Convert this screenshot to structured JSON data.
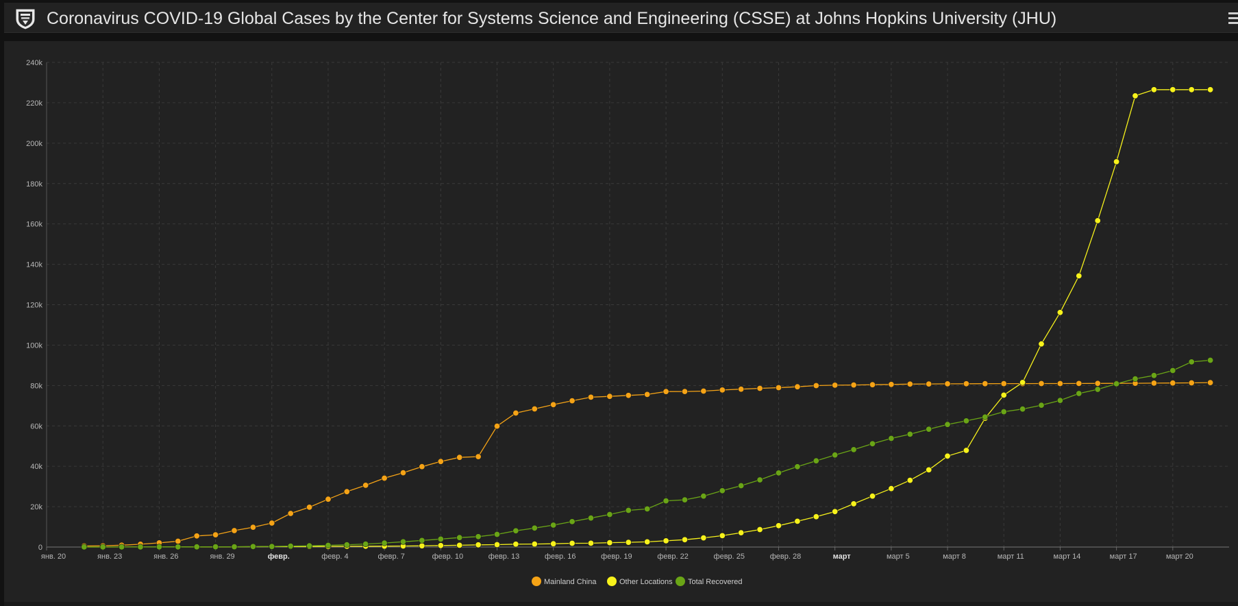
{
  "header": {
    "title": "Coronavirus COVID-19 Global Cases by the Center for Systems Science and Engineering (CSSE) at Johns Hopkins University (JHU)",
    "logo_icon": "university-shield-icon",
    "menu_icon": "menu-icon"
  },
  "colors": {
    "background": "#222222",
    "grid": "#3a3a3a",
    "axis_text": "#b8b8b8",
    "mainland_china": "#f5a316",
    "other_locations": "#f7f21b",
    "total_recovered": "#6aa516"
  },
  "chart_data": {
    "type": "line",
    "title": "",
    "xlabel": "",
    "ylabel": "",
    "x_start": "2020-01-22",
    "x_ticks": [
      {
        "label": "янв. 20",
        "date": "2020-01-20",
        "bold": false
      },
      {
        "label": "янв. 23",
        "date": "2020-01-23",
        "bold": false
      },
      {
        "label": "янв. 26",
        "date": "2020-01-26",
        "bold": false
      },
      {
        "label": "янв. 29",
        "date": "2020-01-29",
        "bold": false
      },
      {
        "label": "февр.",
        "date": "2020-02-01",
        "bold": true
      },
      {
        "label": "февр. 4",
        "date": "2020-02-04",
        "bold": false
      },
      {
        "label": "февр. 7",
        "date": "2020-02-07",
        "bold": false
      },
      {
        "label": "февр. 10",
        "date": "2020-02-10",
        "bold": false
      },
      {
        "label": "февр. 13",
        "date": "2020-02-13",
        "bold": false
      },
      {
        "label": "февр. 16",
        "date": "2020-02-16",
        "bold": false
      },
      {
        "label": "февр. 19",
        "date": "2020-02-19",
        "bold": false
      },
      {
        "label": "февр. 22",
        "date": "2020-02-22",
        "bold": false
      },
      {
        "label": "февр. 25",
        "date": "2020-02-25",
        "bold": false
      },
      {
        "label": "февр. 28",
        "date": "2020-02-28",
        "bold": false
      },
      {
        "label": "март",
        "date": "2020-03-02",
        "bold": true
      },
      {
        "label": "март 5",
        "date": "2020-03-05",
        "bold": false
      },
      {
        "label": "март 8",
        "date": "2020-03-08",
        "bold": false
      },
      {
        "label": "март 11",
        "date": "2020-03-11",
        "bold": false
      },
      {
        "label": "март 14",
        "date": "2020-03-14",
        "bold": false
      },
      {
        "label": "март 17",
        "date": "2020-03-17",
        "bold": false
      },
      {
        "label": "март 20",
        "date": "2020-03-20",
        "bold": false
      }
    ],
    "x_range": [
      "2020-01-20",
      "2020-03-23"
    ],
    "y_ticks": [
      {
        "label": "0",
        "value": 0
      },
      {
        "label": "20k",
        "value": 20000
      },
      {
        "label": "40k",
        "value": 40000
      },
      {
        "label": "60k",
        "value": 60000
      },
      {
        "label": "80k",
        "value": 80000
      },
      {
        "label": "100k",
        "value": 100000
      },
      {
        "label": "120k",
        "value": 120000
      },
      {
        "label": "140k",
        "value": 140000
      },
      {
        "label": "160k",
        "value": 160000
      },
      {
        "label": "180k",
        "value": 180000
      },
      {
        "label": "200k",
        "value": 200000
      },
      {
        "label": "220k",
        "value": 220000
      },
      {
        "label": "240k",
        "value": 240000
      }
    ],
    "ylim": [
      0,
      240000
    ],
    "grid": true,
    "legend_position": "bottom-center",
    "series": [
      {
        "name": "Mainland China",
        "color": "#f5a316",
        "values": [
          548,
          643,
          920,
          1406,
          2075,
          2877,
          5509,
          6087,
          8141,
          9802,
          11891,
          16630,
          19716,
          23707,
          27440,
          30587,
          34110,
          36814,
          39829,
          42354,
          44386,
          44759,
          59895,
          66358,
          68413,
          70513,
          72434,
          74211,
          74619,
          75077,
          75550,
          77001,
          77022,
          77241,
          77754,
          78166,
          78600,
          78928,
          79356,
          79932,
          80136,
          80261,
          80386,
          80537,
          80690,
          80770,
          80823,
          80860,
          80887,
          80921,
          80932,
          80945,
          80977,
          81003,
          81033,
          81058,
          81102,
          81156,
          81250,
          81305,
          81435
        ]
      },
      {
        "name": "Other Locations",
        "color": "#f7f21b",
        "values": [
          7,
          11,
          21,
          28,
          43,
          61,
          78,
          98,
          129,
          155,
          198,
          236,
          282,
          314,
          357,
          405,
          458,
          493,
          622,
          762,
          887,
          1082,
          1187,
          1426,
          1479,
          1635,
          1852,
          1906,
          2170,
          2334,
          2586,
          3085,
          3626,
          4541,
          5646,
          7096,
          8648,
          10581,
          12758,
          15037,
          17567,
          21434,
          25225,
          28943,
          33064,
          38235,
          45045,
          47860,
          63762,
          75216,
          81488,
          100567,
          116165,
          134278,
          161613,
          190825,
          223428,
          226500,
          226500,
          226500,
          226500
        ]
      },
      {
        "name": "Total Recovered",
        "color": "#6aa516",
        "values": [
          28,
          30,
          36,
          39,
          52,
          61,
          107,
          126,
          143,
          222,
          284,
          472,
          623,
          852,
          1124,
          1487,
          2011,
          2616,
          3244,
          3946,
          4683,
          5150,
          6295,
          8058,
          9395,
          10865,
          12583,
          14352,
          16121,
          18177,
          18890,
          22886,
          23394,
          25227,
          27905,
          30384,
          33277,
          36711,
          39782,
          42716,
          45602,
          48228,
          51170,
          53796,
          55865,
          58358,
          60694,
          62494,
          64404,
          67003,
          68324,
          70251,
          72624,
          76034,
          78088,
          80840,
          83312,
          84975,
          87420,
          91692,
          92500
        ]
      }
    ]
  },
  "legend": {
    "items": [
      {
        "label": "Mainland China",
        "color": "#f5a316"
      },
      {
        "label": "Other Locations",
        "color": "#f7f21b"
      },
      {
        "label": "Total Recovered",
        "color": "#6aa516"
      }
    ]
  }
}
